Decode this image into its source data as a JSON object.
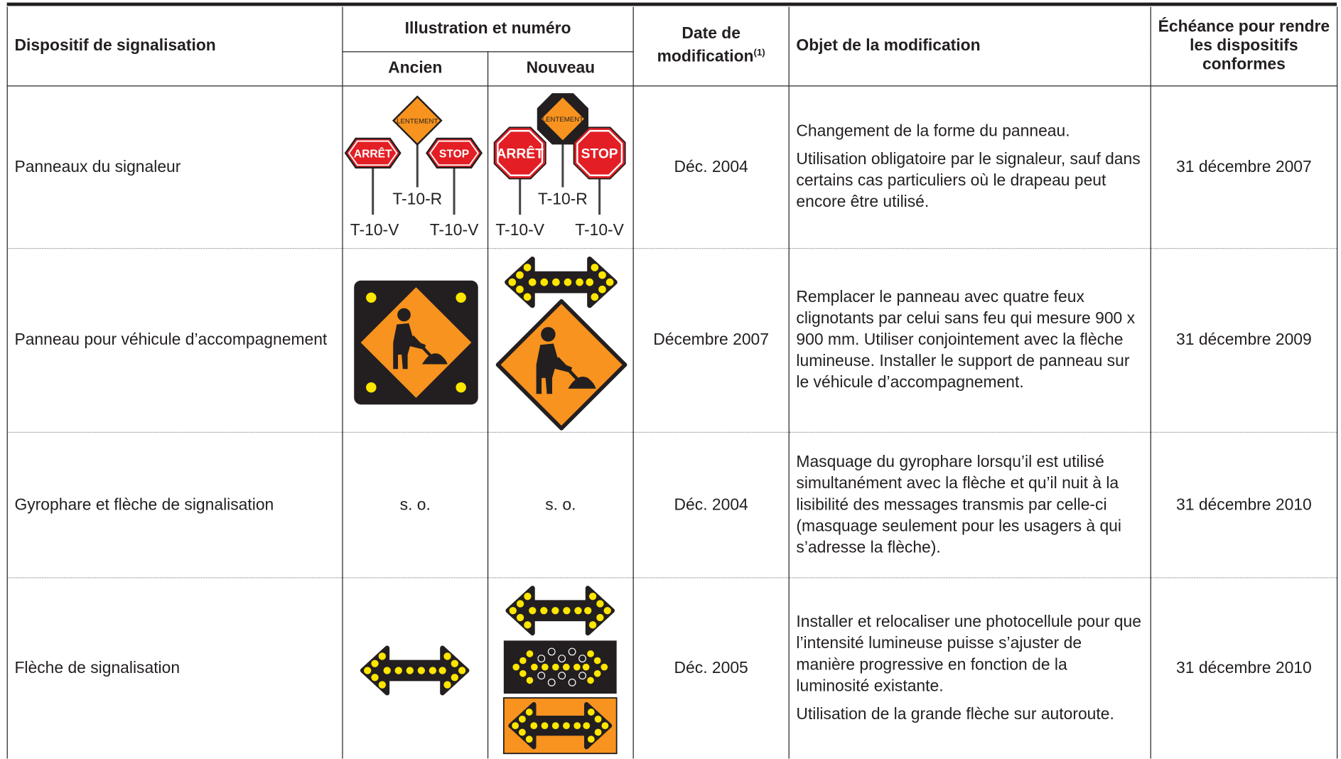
{
  "table": {
    "header": {
      "device": "Dispositif de signalisation",
      "illustration": "Illustration et numéro",
      "old": "Ancien",
      "new": "Nouveau",
      "date": "Date de modification",
      "date_note": "(1)",
      "object": "Objet de la modification",
      "deadline": "Échéance pour rendre les dispositifs conformes"
    },
    "rows": [
      {
        "device": "Panneaux du signaleur",
        "old": {
          "signs": [
            "ARRÊT",
            "LENTEMENT",
            "STOP"
          ],
          "codes": [
            "T-10-V",
            "T-10-R",
            "T-10-V"
          ]
        },
        "new": {
          "signs": [
            "ARRÊT",
            "LENTEMENT",
            "STOP"
          ],
          "codes": [
            "T-10-V",
            "T-10-R",
            "T-10-V"
          ]
        },
        "date": "Déc. 2004",
        "object": [
          "Changement de la forme du panneau.",
          "Utilisation obligatoire par le signaleur, sauf dans certains cas particuliers où le drapeau peut encore être utilisé."
        ],
        "deadline": "31 décembre 2007"
      },
      {
        "device": "Panneau pour véhicule d’accompagnement",
        "date": "Décembre 2007",
        "object": [
          "Remplacer le panneau avec quatre feux clignotants par celui sans feu qui mesure 900 x 900 mm. Utiliser conjointement avec la flèche lumineuse. Installer le support de panneau sur le véhicule d’accompagnement."
        ],
        "deadline": "31 décembre 2009"
      },
      {
        "device": "Gyrophare et flèche de signalisation",
        "old": "s. o.",
        "new": "s. o.",
        "date": "Déc. 2004",
        "object": [
          "Masquage du gyrophare lorsqu’il est utilisé simultanément avec la flèche et qu’il nuit à la lisibilité des messages transmis par celle-ci (masquage seulement pour les usagers à qui s’adresse la flèche)."
        ],
        "deadline": "31 décembre 2010"
      },
      {
        "device": "Flèche de signalisation",
        "date": "Déc. 2005",
        "object": [
          "Installer et relocaliser une photocellule pour que l’intensité lumineuse puisse s’ajuster de manière progressive en fonction de la luminosité existante.",
          "Utilisation de la grande flèche sur autoroute."
        ],
        "deadline": "31 décembre 2010"
      }
    ]
  }
}
